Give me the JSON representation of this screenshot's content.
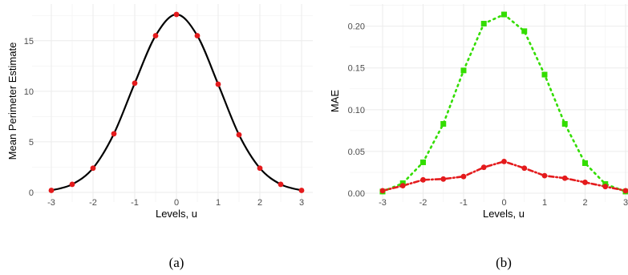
{
  "chart_data": [
    {
      "type": "line",
      "panel_label": "(a)",
      "xlabel": "Levels, u",
      "ylabel": "Mean Perimeter Estimate",
      "xlim": [
        -3,
        3
      ],
      "ylim": [
        0,
        17.6
      ],
      "x_ticks": [
        "-3",
        "-2",
        "-1",
        "0",
        "1",
        "2",
        "3"
      ],
      "y_ticks": [
        "0",
        "5",
        "10",
        "15"
      ],
      "grid": true,
      "series": [
        {
          "style": "solid-line-with-points",
          "line_color": "#000000",
          "point_color": "#e41a1c",
          "points": [
            {
              "x": -3,
              "y": 0.2
            },
            {
              "x": -2.5,
              "y": 0.8
            },
            {
              "x": -2,
              "y": 2.4
            },
            {
              "x": -1.5,
              "y": 5.8
            },
            {
              "x": -1,
              "y": 10.8
            },
            {
              "x": -0.5,
              "y": 15.5
            },
            {
              "x": 0,
              "y": 17.6
            },
            {
              "x": 0.5,
              "y": 15.5
            },
            {
              "x": 1,
              "y": 10.7
            },
            {
              "x": 1.5,
              "y": 5.7
            },
            {
              "x": 2,
              "y": 2.4
            },
            {
              "x": 2.5,
              "y": 0.8
            },
            {
              "x": 3,
              "y": 0.2
            }
          ]
        }
      ]
    },
    {
      "type": "line",
      "panel_label": "(b)",
      "xlabel": "Levels, u",
      "ylabel": "MAE",
      "xlim": [
        -3,
        3
      ],
      "ylim": [
        0,
        0.215
      ],
      "x_ticks": [
        "-3",
        "-2",
        "-1",
        "0",
        "1",
        "2",
        "3"
      ],
      "y_ticks": [
        "0.00",
        "0.05",
        "0.10",
        "0.15",
        "0.20"
      ],
      "grid": true,
      "series": [
        {
          "style": "dotted-line-square-markers",
          "color": "#33dd00",
          "points": [
            {
              "x": -3,
              "y": 0.002
            },
            {
              "x": -2.5,
              "y": 0.012
            },
            {
              "x": -2,
              "y": 0.037
            },
            {
              "x": -1.5,
              "y": 0.083
            },
            {
              "x": -1,
              "y": 0.147
            },
            {
              "x": -0.5,
              "y": 0.203
            },
            {
              "x": 0,
              "y": 0.214
            },
            {
              "x": 0.5,
              "y": 0.194
            },
            {
              "x": 1,
              "y": 0.142
            },
            {
              "x": 1.5,
              "y": 0.083
            },
            {
              "x": 2,
              "y": 0.036
            },
            {
              "x": 2.5,
              "y": 0.011
            },
            {
              "x": 3,
              "y": 0.002
            }
          ]
        },
        {
          "style": "dash-dot-line-circle-markers",
          "color": "#e41a1c",
          "points": [
            {
              "x": -3,
              "y": 0.003
            },
            {
              "x": -2.5,
              "y": 0.009
            },
            {
              "x": -2,
              "y": 0.016
            },
            {
              "x": -1.5,
              "y": 0.017
            },
            {
              "x": -1,
              "y": 0.02
            },
            {
              "x": -0.5,
              "y": 0.031
            },
            {
              "x": 0,
              "y": 0.038
            },
            {
              "x": 0.5,
              "y": 0.03
            },
            {
              "x": 1,
              "y": 0.021
            },
            {
              "x": 1.5,
              "y": 0.018
            },
            {
              "x": 2,
              "y": 0.013
            },
            {
              "x": 2.5,
              "y": 0.008
            },
            {
              "x": 3,
              "y": 0.003
            }
          ]
        }
      ]
    }
  ]
}
